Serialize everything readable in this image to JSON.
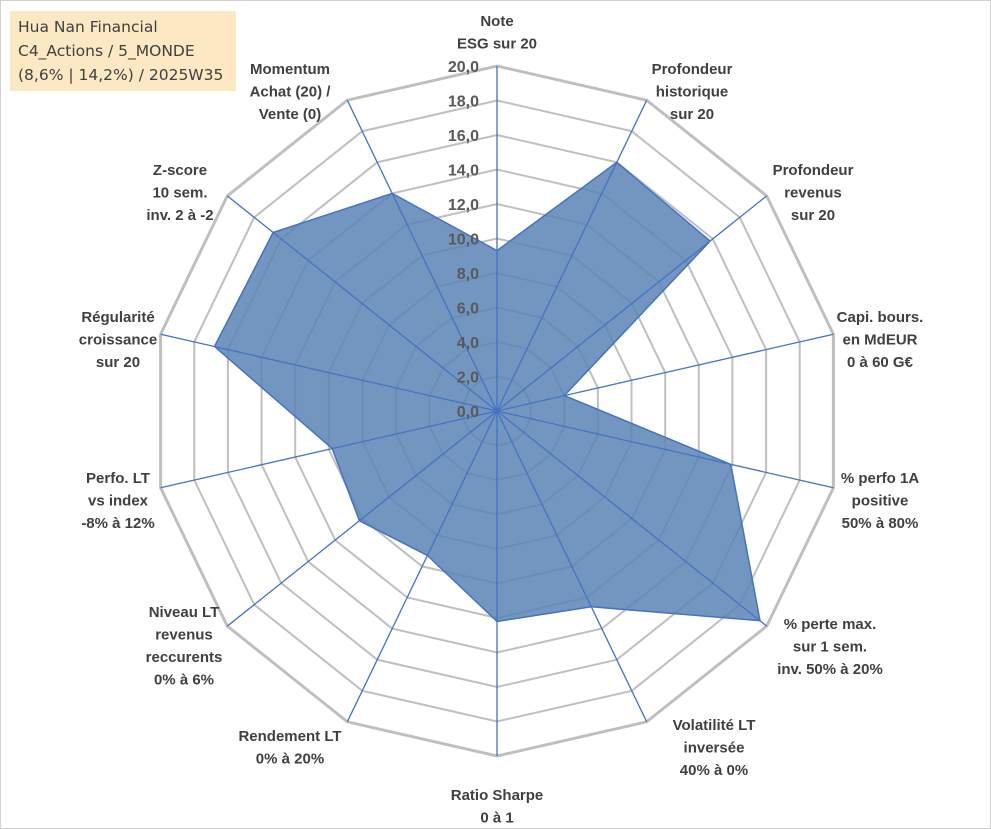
{
  "info_box": {
    "line1": "Hua Nan Financial",
    "line2": "C4_Actions / 5_MONDE",
    "line3": "(8,6% | 14,2%) / 2025W35"
  },
  "colors": {
    "fill": "#5b84b5",
    "fill_outline": "#4472c4",
    "spoke": "#4472c4",
    "grid": "#bfbfbf",
    "outer_grid": "#bfbfbf",
    "info_bg": "#fce8c2"
  },
  "chart_data": {
    "type": "radar",
    "title": "",
    "r_range": [
      0,
      20
    ],
    "r_ticks": [
      "0,0",
      "2,0",
      "4,0",
      "6,0",
      "8,0",
      "10,0",
      "12,0",
      "14,0",
      "16,0",
      "18,0",
      "20,0"
    ],
    "grid": true,
    "axes": [
      {
        "lines": [
          "Note",
          "ESG sur 20"
        ],
        "value": 9.3
      },
      {
        "lines": [
          "Profondeur",
          "historique",
          "sur 20"
        ],
        "value": 16.0
      },
      {
        "lines": [
          "Profondeur",
          "revenus",
          "sur 20"
        ],
        "value": 15.8
      },
      {
        "lines": [
          "Capi. bours.",
          "en MdEUR",
          "0 à 60 G€"
        ],
        "value": 4.0
      },
      {
        "lines": [
          "% perfo 1A",
          "positive",
          "50% à 80%"
        ],
        "value": 13.9
      },
      {
        "lines": [
          "% perte max.",
          "sur 1 sem.",
          "inv. 50% à 20%"
        ],
        "value": 19.5
      },
      {
        "lines": [
          "Volatilité LT",
          "inversée",
          "40% à 0%"
        ],
        "value": 12.6
      },
      {
        "lines": [
          "Ratio Sharpe",
          "0 à 1"
        ],
        "value": 12.2
      },
      {
        "lines": [
          "Rendement LT",
          "0% à 20%"
        ],
        "value": 9.3
      },
      {
        "lines": [
          "Niveau LT",
          "revenus",
          "reccurents",
          "0% à 6%"
        ],
        "value": 10.2
      },
      {
        "lines": [
          "Perfo. LT",
          "vs index",
          "-8% à 12%"
        ],
        "value": 9.8
      },
      {
        "lines": [
          "Régularité",
          "croissance",
          "sur 20"
        ],
        "value": 16.8
      },
      {
        "lines": [
          "Z-score",
          "10 sem.",
          "inv. 2 à -2"
        ],
        "value": 16.6
      },
      {
        "lines": [
          "Momentum",
          "Achat (20) /",
          "Vente (0)"
        ],
        "value": 14.0
      }
    ]
  }
}
